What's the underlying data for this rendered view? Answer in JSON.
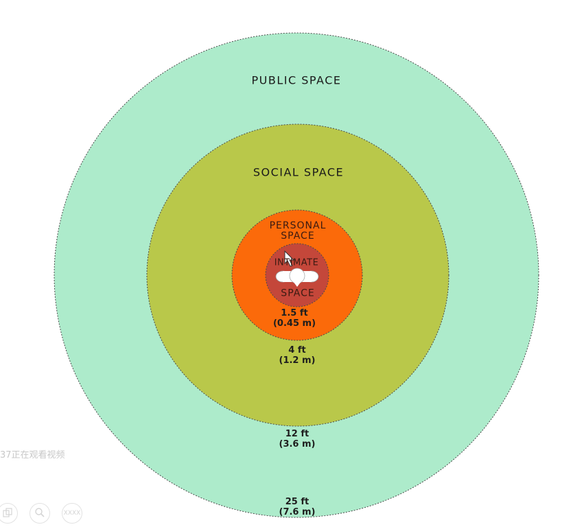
{
  "zones": {
    "public": {
      "title": "PUBLIC SPACE",
      "distance_ft": "25 ft",
      "distance_m": "(7.6 m)",
      "color": "#ADEBCB"
    },
    "social": {
      "title": "SOCIAL SPACE",
      "distance_ft": "12 ft",
      "distance_m": "(3.6 m)",
      "color": "#B9C84A"
    },
    "personal": {
      "title_line1": "PERSONAL",
      "title_line2": "SPACE",
      "distance_ft": "4 ft",
      "distance_m": "(1.2 m)",
      "color": "#FB6A0A"
    },
    "intimate": {
      "title_line1": "INTIMATE",
      "title_line2": "SPACE",
      "distance_ft": "1.5 ft",
      "distance_m": "(0.45 m)",
      "color": "#C4473A"
    }
  },
  "overlay": {
    "viewers_text": "37正在观看视频"
  },
  "controls": [
    {
      "icon": "copy-icon"
    },
    {
      "icon": "zoom-icon"
    },
    {
      "icon": "more-icon",
      "label": "XXXX"
    }
  ]
}
